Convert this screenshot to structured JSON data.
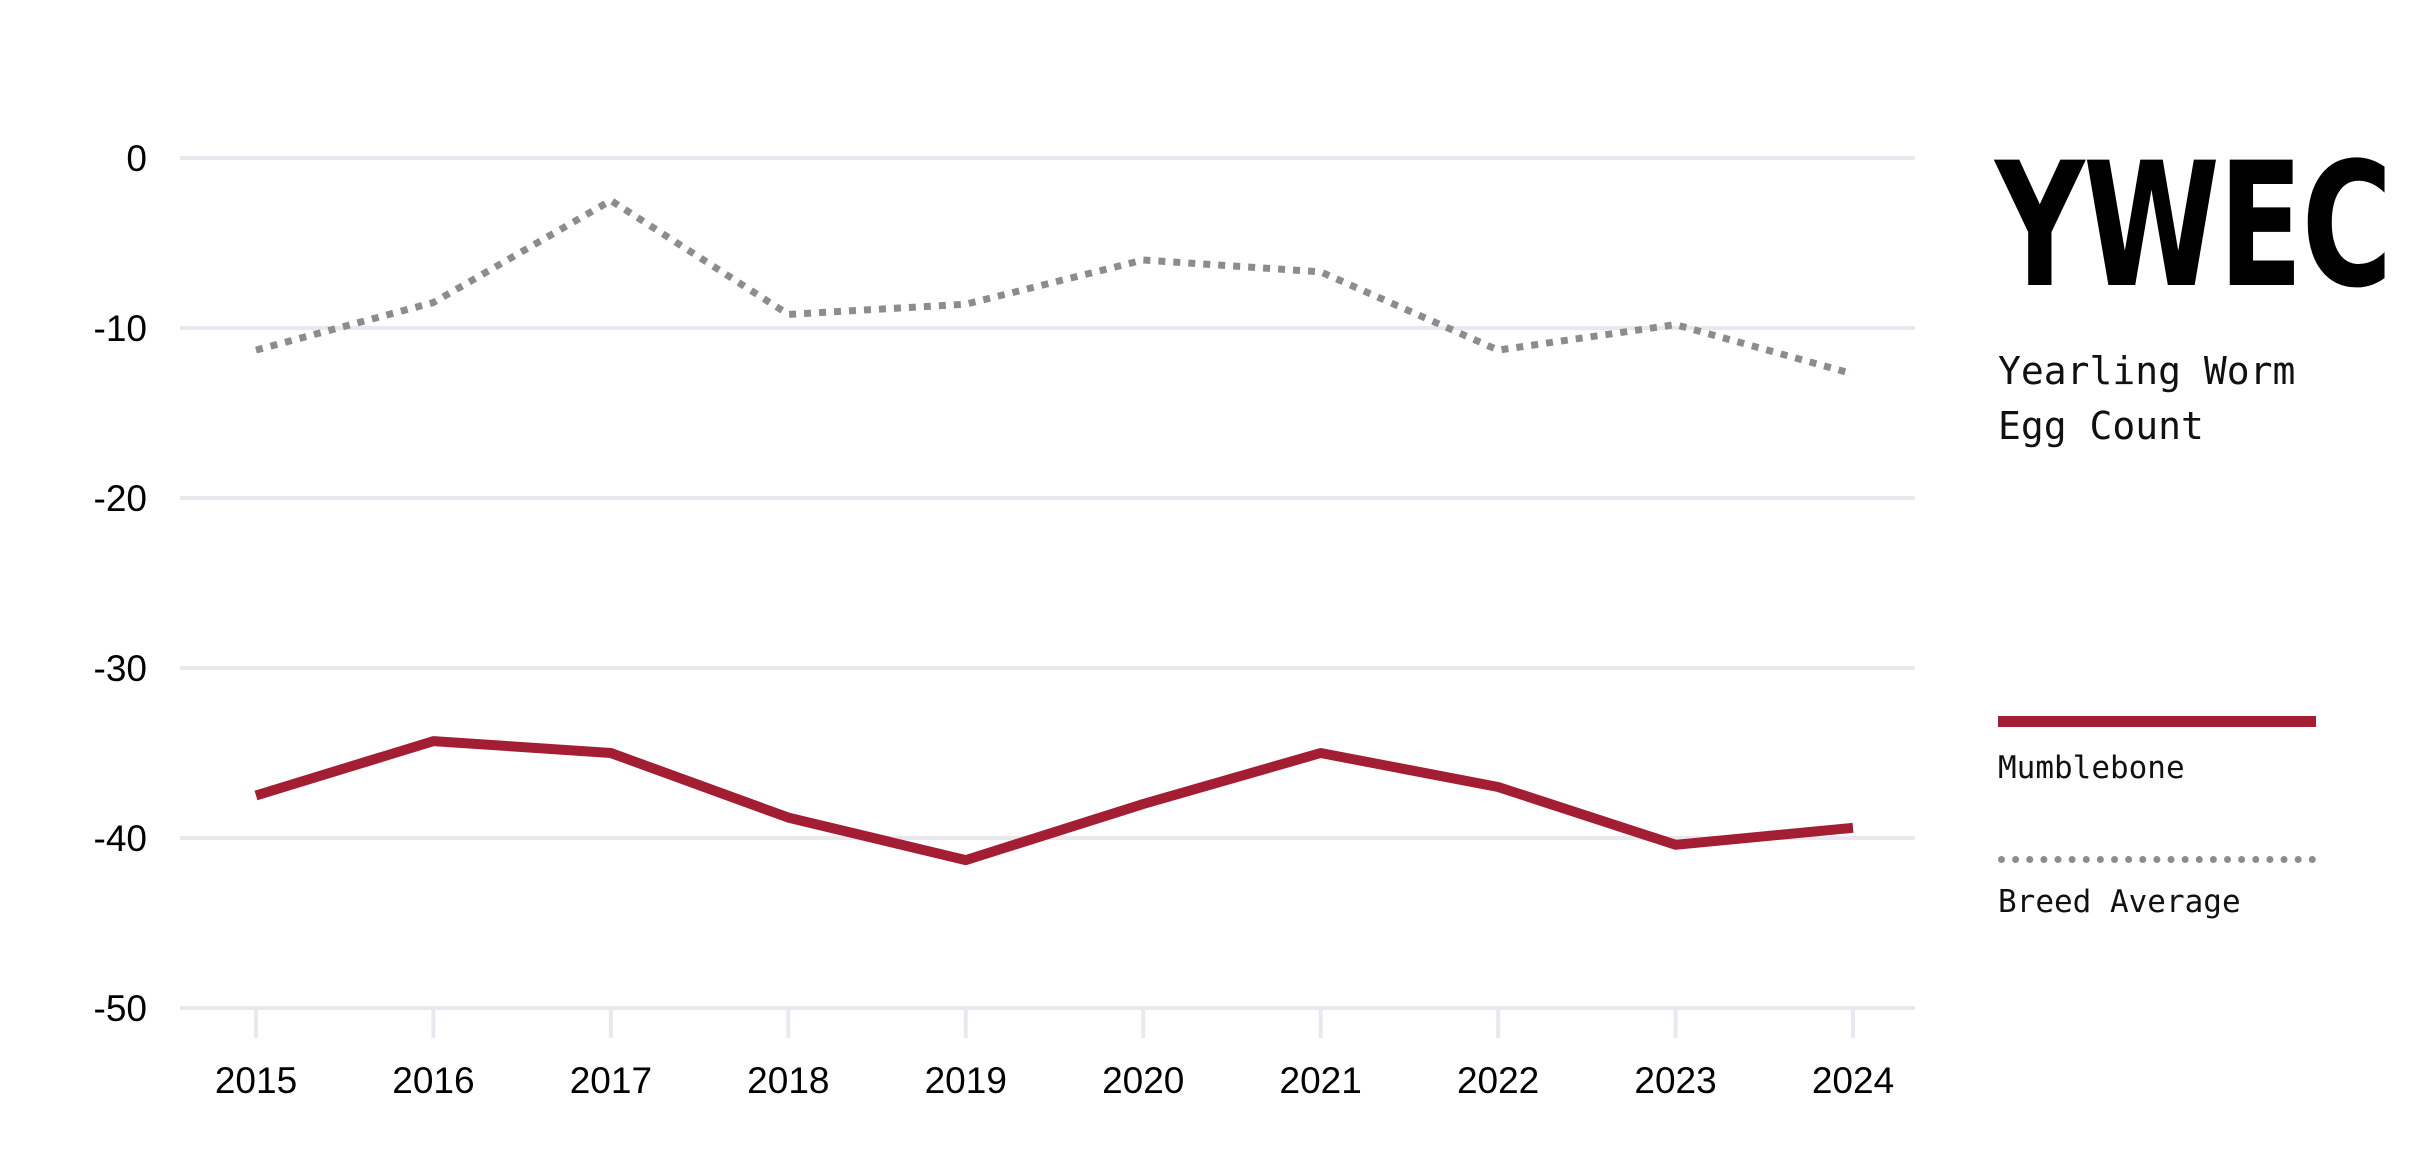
{
  "header": {
    "abbreviation": "YWEC",
    "subtitle": "Yearling Worm Egg Count"
  },
  "legend": {
    "items": [
      {
        "label": "Mumblebone",
        "style": "solid"
      },
      {
        "label": "Breed Average",
        "style": "dotted"
      }
    ]
  },
  "colors": {
    "mumblebone": "#a31d33",
    "breed_average": "#8c8c8c",
    "gridline": "#e9e8ee"
  },
  "chart_data": {
    "type": "line",
    "title": "YWEC",
    "subtitle": "Yearling Worm Egg Count",
    "categories": [
      "2015",
      "2016",
      "2017",
      "2018",
      "2019",
      "2020",
      "2021",
      "2022",
      "2023",
      "2024"
    ],
    "series": [
      {
        "name": "Mumblebone",
        "style": "solid",
        "values": [
          -37.5,
          -34.3,
          -35.0,
          -38.8,
          -41.3,
          -38.0,
          -35.0,
          -37.0,
          -40.4,
          -39.4
        ]
      },
      {
        "name": "Breed Average",
        "style": "dotted",
        "values": [
          -11.3,
          -8.5,
          -2.5,
          -9.2,
          -8.6,
          -6.0,
          -6.7,
          -11.3,
          -9.8,
          -12.7
        ]
      }
    ],
    "yticks": [
      0,
      -10,
      -20,
      -30,
      -40,
      -50
    ],
    "ylim": [
      -50,
      0
    ],
    "xlabel": "",
    "ylabel": "",
    "grid": "horizontal",
    "legend_position": "right"
  }
}
